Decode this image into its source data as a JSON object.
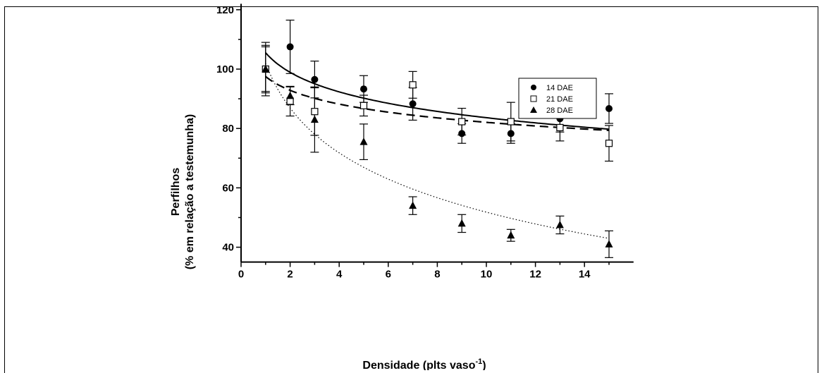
{
  "chart_data": {
    "type": "scatter",
    "xlabel": "Densidade (plts vaso",
    "xlabel_superscript": "-1",
    "xlabel_suffix": ")",
    "ylabel_line1": "Perfilhos",
    "ylabel_line2": "(% em relação a testemunha)",
    "xlim": [
      0,
      16
    ],
    "ylim": [
      35,
      122
    ],
    "x_ticks": [
      0,
      2,
      4,
      6,
      8,
      10,
      12,
      14
    ],
    "y_ticks": [
      40,
      60,
      80,
      100,
      120
    ],
    "legend_position": "top-right",
    "series": [
      {
        "name": "14 DAE",
        "marker": "filled-circle",
        "line_style": "solid",
        "x": [
          1,
          2,
          3,
          5,
          7,
          9,
          11,
          13,
          15
        ],
        "y": [
          100,
          107.5,
          96.5,
          93.3,
          88.3,
          78.3,
          78.3,
          83.3,
          86.7
        ],
        "err": [
          7.5,
          9,
          6.2,
          4.5,
          5.5,
          3.3,
          3.3,
          4.5,
          5
        ],
        "fit": {
          "a": 105.5,
          "b": 9.5
        }
      },
      {
        "name": "21 DAE",
        "marker": "open-square",
        "line_style": "dashed",
        "x": [
          1,
          2,
          3,
          5,
          7,
          9,
          11,
          13,
          15
        ],
        "y": [
          100,
          89.2,
          85.7,
          87.7,
          94.7,
          82.3,
          82.3,
          80.3,
          75
        ],
        "err": [
          9,
          5,
          8,
          3.5,
          4.5,
          4.5,
          6.5,
          4.5,
          6
        ],
        "fit": {
          "a": 97.5,
          "b": 6.7
        }
      },
      {
        "name": "28 DAE",
        "marker": "filled-triangle",
        "line_style": "dotted",
        "x": [
          1,
          2,
          3,
          5,
          7,
          9,
          11,
          13,
          15
        ],
        "y": [
          100,
          91,
          83,
          75.5,
          54,
          48,
          44,
          47.5,
          41
        ],
        "err": [
          8,
          3,
          11,
          6,
          3,
          3,
          2,
          3,
          4.5
        ],
        "fit": {
          "a": 102,
          "b": 21.8
        }
      }
    ]
  }
}
